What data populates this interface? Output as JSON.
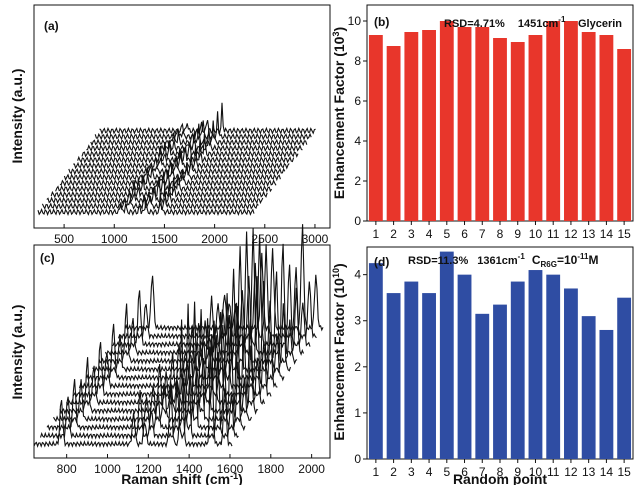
{
  "chart_data": [
    {
      "type": "line",
      "panel": "(a)",
      "ylabel": "Intensity (a.u.)",
      "xlabel": "",
      "xticks": [
        "500",
        "1000",
        "1500",
        "2000",
        "2500",
        "3000"
      ],
      "xlim": [
        200,
        3150
      ],
      "series_count": 15,
      "peaks_cm": [
        1064,
        1112,
        1253,
        1313,
        1461,
        2885,
        2935
      ],
      "peak_heights": [
        0.06,
        0.05,
        0.05,
        0.1,
        0.13,
        0.5,
        0.85
      ]
    },
    {
      "type": "bar",
      "panel": "(b)",
      "annotation_rsd": "RSD=4.71%",
      "annotation_peak": "1451cm",
      "annotation_peak_sup": "-1",
      "legend_name": "Glycerin",
      "ylabel": "Enhancement Factor (10",
      "ylabel_sup": "3",
      "ylabel_end": ")",
      "xlabel": "",
      "categories": [
        "1",
        "2",
        "3",
        "4",
        "5",
        "6",
        "7",
        "8",
        "9",
        "10",
        "11",
        "12",
        "13",
        "14",
        "15"
      ],
      "values": [
        9.3,
        8.75,
        9.45,
        9.55,
        10.0,
        9.7,
        9.7,
        9.15,
        8.95,
        9.3,
        10.0,
        10.0,
        9.45,
        9.3,
        8.6
      ],
      "ylim": [
        0,
        10.8
      ],
      "yticks": [
        "0",
        "2",
        "4",
        "6",
        "8",
        "10"
      ],
      "color": "#e8362b"
    },
    {
      "type": "line",
      "panel": "(c)",
      "ylabel": "Intensity (a.u.)",
      "xlabel": "Raman shift (cm",
      "xlabel_sup": "-1",
      "xlabel_end": ")",
      "xticks": [
        "800",
        "1000",
        "1200",
        "1400",
        "1600",
        "1800",
        "2000"
      ],
      "xlim": [
        640,
        2090
      ],
      "series_count": 15,
      "peaks_cm": [
        612,
        774,
        1128,
        1183,
        1310,
        1363,
        1509,
        1575,
        1650
      ],
      "peak_heights": [
        0.35,
        0.3,
        0.25,
        0.2,
        0.4,
        0.7,
        0.6,
        0.35,
        0.7
      ]
    },
    {
      "type": "bar",
      "panel": "(d)",
      "annotation_rsd": "RSD=11.3%",
      "annotation_peak": "1361cm",
      "annotation_peak_sup": "-1",
      "annotation_conc": "C",
      "annotation_conc_sub": "R6G",
      "annotation_conc_eq": "=10",
      "annotation_conc_sup": "-11",
      "annotation_conc_unit": "M",
      "ylabel": "Enhancement Factor (10",
      "ylabel_sup": "10",
      "ylabel_end": ")",
      "xlabel": "Random point",
      "categories": [
        "1",
        "2",
        "3",
        "4",
        "5",
        "6",
        "7",
        "8",
        "9",
        "10",
        "11",
        "12",
        "13",
        "14",
        "15"
      ],
      "values": [
        4.25,
        3.6,
        3.85,
        3.6,
        4.5,
        4.0,
        3.15,
        3.35,
        3.85,
        4.1,
        4.0,
        3.7,
        3.1,
        2.8,
        3.5
      ],
      "ylim": [
        0,
        4.6
      ],
      "yticks": [
        "0",
        "1",
        "2",
        "3",
        "4"
      ],
      "color": "#2f4da3"
    }
  ]
}
